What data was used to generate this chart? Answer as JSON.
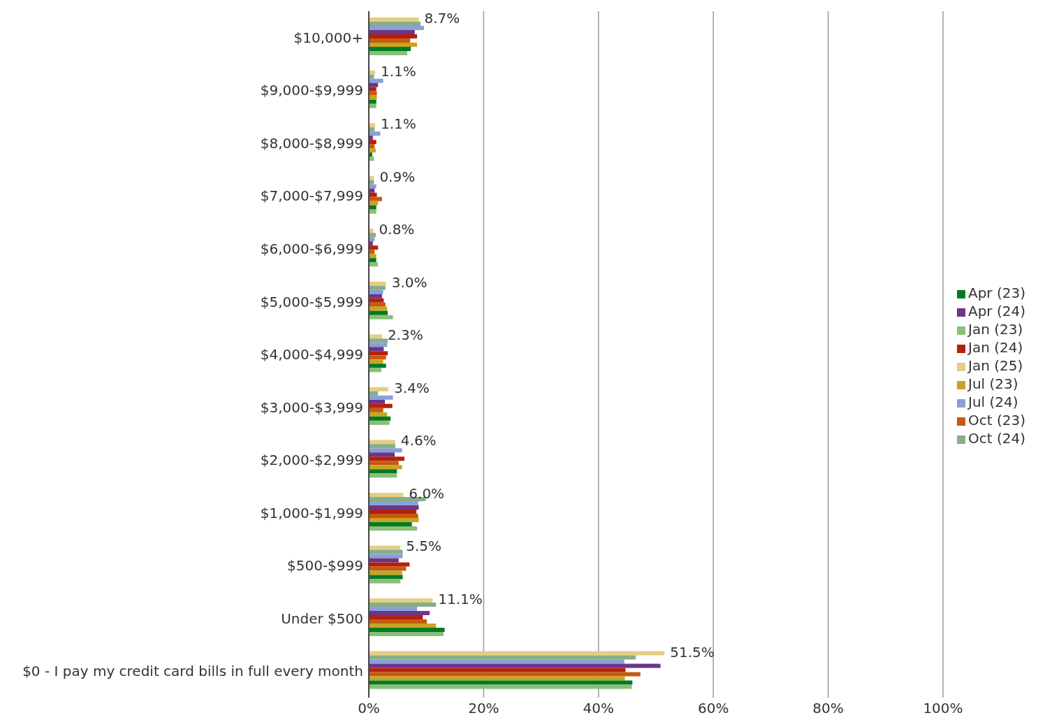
{
  "chart_data": {
    "type": "bar",
    "orientation": "horizontal",
    "categories": [
      "$10,000+",
      "$9,000-$9,999",
      "$8,000-$8,999",
      "$7,000-$7,999",
      "$6,000-$6,999",
      "$5,000-$5,999",
      "$4,000-$4,999",
      "$3,000-$3,999",
      "$2,000-$2,999",
      "$1,000-$1,999",
      "$500-$999",
      "Under $500",
      "$0 - I pay my credit card bills in full every month"
    ],
    "series": [
      {
        "name": "Jan (25)",
        "color": "#e5cd84",
        "values": [
          8.7,
          1.1,
          1.1,
          0.9,
          0.8,
          3.0,
          2.3,
          3.4,
          4.6,
          6.0,
          5.5,
          11.1,
          51.5
        ],
        "value_labels": [
          "8.7%",
          "1.1%",
          "1.1%",
          "0.9%",
          "0.8%",
          "3.0%",
          "2.3%",
          "3.4%",
          "4.6%",
          "6.0%",
          "5.5%",
          "11.1%",
          "51.5%"
        ]
      },
      {
        "name": "Oct (24)",
        "color": "#86ae8a",
        "values": [
          9.0,
          0.9,
          1.0,
          0.9,
          1.2,
          2.9,
          3.3,
          1.6,
          4.6,
          9.9,
          5.9,
          11.7,
          46.5
        ]
      },
      {
        "name": "Jul (24)",
        "color": "#8aa0d4",
        "values": [
          9.6,
          2.5,
          2.0,
          1.3,
          1.0,
          2.5,
          3.2,
          4.2,
          5.8,
          8.6,
          5.9,
          8.4,
          44.5
        ]
      },
      {
        "name": "Apr (24)",
        "color": "#6b3589",
        "values": [
          8.0,
          1.6,
          0.7,
          1.0,
          0.7,
          2.3,
          2.6,
          2.8,
          4.5,
          8.7,
          5.2,
          10.6,
          50.8
        ]
      },
      {
        "name": "Jan (24)",
        "color": "#b5200d",
        "values": [
          8.4,
          1.3,
          1.3,
          1.4,
          1.6,
          2.6,
          3.3,
          4.1,
          6.2,
          8.3,
          7.1,
          9.4,
          44.7
        ]
      },
      {
        "name": "Oct (23)",
        "color": "#c55a11",
        "values": [
          7.2,
          1.4,
          1.0,
          2.3,
          1.0,
          2.9,
          3.0,
          2.5,
          5.2,
          8.6,
          6.5,
          10.1,
          47.3
        ]
      },
      {
        "name": "Jul (23)",
        "color": "#c8a520",
        "values": [
          8.4,
          1.4,
          1.2,
          1.6,
          1.3,
          3.2,
          2.5,
          3.2,
          5.8,
          8.7,
          5.8,
          11.7,
          44.6
        ]
      },
      {
        "name": "Apr (23)",
        "color": "#007a27",
        "values": [
          7.3,
          1.3,
          0.6,
          1.3,
          1.3,
          3.3,
          3.0,
          3.8,
          4.9,
          7.5,
          5.9,
          13.2,
          45.9
        ]
      },
      {
        "name": "Jan (23)",
        "color": "#8abf76",
        "values": [
          6.7,
          1.3,
          0.9,
          1.3,
          1.6,
          4.2,
          2.2,
          3.6,
          4.9,
          8.4,
          5.5,
          13.0,
          45.8
        ]
      }
    ],
    "xlim": [
      0,
      100
    ],
    "xticks": [
      {
        "value": 0,
        "label": "0%"
      },
      {
        "value": 20,
        "label": "20%"
      },
      {
        "value": 40,
        "label": "40%"
      },
      {
        "value": 60,
        "label": "60%"
      },
      {
        "value": 80,
        "label": "80%"
      },
      {
        "value": 100,
        "label": "100%"
      }
    ],
    "grid": "x",
    "legend": "right"
  }
}
